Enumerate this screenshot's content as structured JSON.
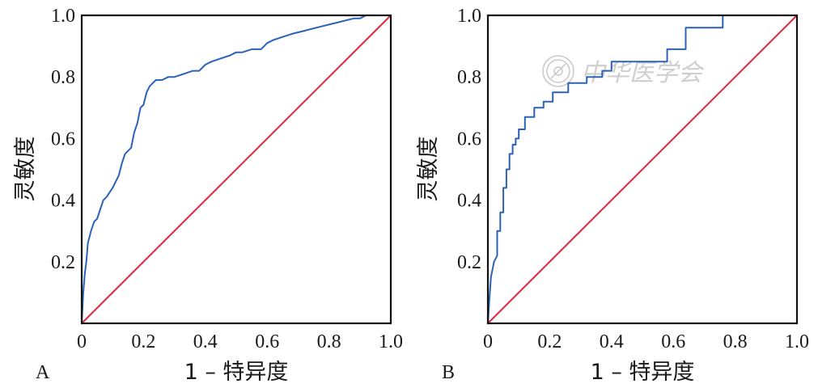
{
  "watermark_text": "中华医学会",
  "chart_data": [
    {
      "type": "line",
      "panel_label": "A",
      "xlabel": "1 – 特异度",
      "ylabel": "灵敏度",
      "xlim": [
        0,
        1
      ],
      "ylim": [
        0,
        1
      ],
      "x_ticks": [
        "0",
        "0.2",
        "0.4",
        "0.6",
        "0.8",
        "1.0"
      ],
      "y_ticks": [
        "0.2",
        "0.4",
        "0.6",
        "0.8",
        "1.0"
      ],
      "grid": false,
      "series": [
        {
          "color": "#2b62b8",
          "x": [
            0,
            0.005,
            0.01,
            0.015,
            0.02,
            0.03,
            0.04,
            0.05,
            0.06,
            0.07,
            0.08,
            0.1,
            0.11,
            0.12,
            0.13,
            0.14,
            0.15,
            0.16,
            0.17,
            0.18,
            0.19,
            0.2,
            0.21,
            0.22,
            0.24,
            0.26,
            0.28,
            0.3,
            0.33,
            0.36,
            0.38,
            0.4,
            0.42,
            0.45,
            0.48,
            0.5,
            0.52,
            0.55,
            0.58,
            0.6,
            0.62,
            0.65,
            0.68,
            0.72,
            0.76,
            0.8,
            0.84,
            0.88,
            0.9,
            0.92,
            1.0
          ],
          "y": [
            0,
            0.1,
            0.16,
            0.2,
            0.26,
            0.3,
            0.33,
            0.34,
            0.37,
            0.4,
            0.41,
            0.44,
            0.46,
            0.48,
            0.52,
            0.55,
            0.56,
            0.57,
            0.62,
            0.65,
            0.7,
            0.71,
            0.75,
            0.77,
            0.79,
            0.79,
            0.8,
            0.8,
            0.81,
            0.82,
            0.82,
            0.84,
            0.85,
            0.86,
            0.87,
            0.88,
            0.88,
            0.89,
            0.89,
            0.91,
            0.92,
            0.93,
            0.94,
            0.95,
            0.96,
            0.97,
            0.98,
            0.99,
            0.99,
            1.0,
            1.0
          ]
        },
        {
          "color": "#e0283c",
          "x": [
            0,
            1
          ],
          "y": [
            0,
            1
          ]
        }
      ]
    },
    {
      "type": "line",
      "panel_label": "B",
      "xlabel": "1 – 特异度",
      "ylabel": "灵敏度",
      "xlim": [
        0,
        1
      ],
      "ylim": [
        0,
        1
      ],
      "x_ticks": [
        "0",
        "0.2",
        "0.4",
        "0.6",
        "0.8",
        "1.0"
      ],
      "y_ticks": [
        "0.2",
        "0.4",
        "0.6",
        "0.8",
        "1.0"
      ],
      "grid": false,
      "series": [
        {
          "color": "#2b62b8",
          "x": [
            0,
            0.005,
            0.01,
            0.02,
            0.03,
            0.03,
            0.04,
            0.04,
            0.05,
            0.05,
            0.06,
            0.06,
            0.07,
            0.07,
            0.08,
            0.08,
            0.09,
            0.09,
            0.1,
            0.1,
            0.12,
            0.12,
            0.15,
            0.15,
            0.18,
            0.18,
            0.21,
            0.21,
            0.26,
            0.26,
            0.32,
            0.32,
            0.37,
            0.37,
            0.4,
            0.4,
            0.58,
            0.58,
            0.64,
            0.64,
            0.76,
            0.76,
            1.0
          ],
          "y": [
            0,
            0.08,
            0.15,
            0.2,
            0.22,
            0.3,
            0.3,
            0.36,
            0.36,
            0.44,
            0.44,
            0.5,
            0.5,
            0.55,
            0.55,
            0.58,
            0.58,
            0.6,
            0.6,
            0.63,
            0.63,
            0.67,
            0.67,
            0.7,
            0.7,
            0.72,
            0.72,
            0.75,
            0.75,
            0.78,
            0.78,
            0.8,
            0.8,
            0.82,
            0.82,
            0.85,
            0.85,
            0.89,
            0.89,
            0.96,
            0.96,
            1.0,
            1.0
          ]
        },
        {
          "color": "#e0283c",
          "x": [
            0,
            1
          ],
          "y": [
            0,
            1
          ]
        }
      ]
    }
  ]
}
